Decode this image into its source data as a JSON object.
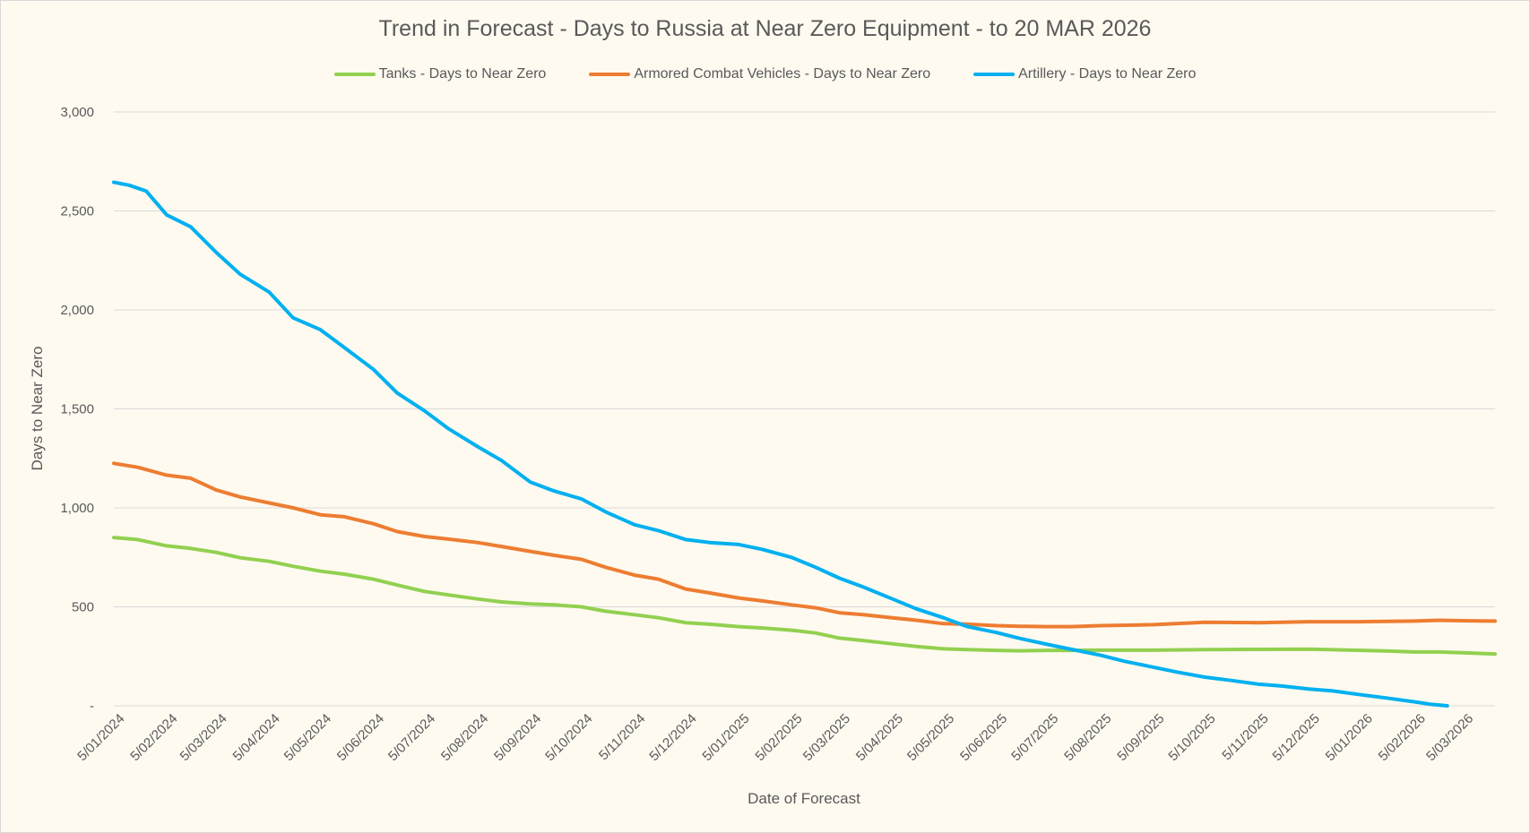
{
  "chart_data": {
    "type": "line",
    "title": "Trend in Forecast - Days to Russia at Near Zero Equipment - to 20 MAR 2026",
    "xlabel": "Date of Forecast",
    "ylabel": "Days to Near Zero",
    "ylim": [
      0,
      3000
    ],
    "xlim": [
      "2024-01-01",
      "2026-03-20"
    ],
    "y_ticks": [
      0,
      500,
      1000,
      1500,
      2000,
      2500,
      3000
    ],
    "y_tick_labels": [
      "-",
      "500",
      "1,000",
      "1,500",
      "2,000",
      "2,500",
      "3,000"
    ],
    "x_ticks": [
      "2024-01-05",
      "2024-02-05",
      "2024-03-05",
      "2024-04-05",
      "2024-05-05",
      "2024-06-05",
      "2024-07-05",
      "2024-08-05",
      "2024-09-05",
      "2024-10-05",
      "2024-11-05",
      "2024-12-05",
      "2025-01-05",
      "2025-02-05",
      "2025-03-05",
      "2025-04-05",
      "2025-05-05",
      "2025-06-05",
      "2025-07-05",
      "2025-08-05",
      "2025-09-05",
      "2025-10-05",
      "2025-11-05",
      "2025-12-05",
      "2026-01-05",
      "2026-02-05",
      "2026-03-05"
    ],
    "x_tick_labels": [
      "5/01/2024",
      "5/02/2024",
      "5/03/2024",
      "5/04/2024",
      "5/05/2024",
      "5/06/2024",
      "5/07/2024",
      "5/08/2024",
      "5/09/2024",
      "5/10/2024",
      "5/11/2024",
      "5/12/2024",
      "5/01/2025",
      "5/02/2025",
      "5/03/2025",
      "5/04/2025",
      "5/05/2025",
      "5/06/2025",
      "5/07/2025",
      "5/08/2025",
      "5/09/2025",
      "5/10/2025",
      "5/11/2025",
      "5/12/2025",
      "5/01/2026",
      "5/02/2026",
      "5/03/2026"
    ],
    "grid": true,
    "legend_position": "top",
    "series": [
      {
        "name": "Tanks - Days to Near Zero",
        "color": "#92d050",
        "points": [
          [
            "2024-01-01",
            850
          ],
          [
            "2024-01-15",
            840
          ],
          [
            "2024-02-01",
            808
          ],
          [
            "2024-02-15",
            795
          ],
          [
            "2024-03-01",
            775
          ],
          [
            "2024-03-15",
            748
          ],
          [
            "2024-04-01",
            730
          ],
          [
            "2024-04-15",
            705
          ],
          [
            "2024-05-01",
            680
          ],
          [
            "2024-05-15",
            665
          ],
          [
            "2024-06-01",
            640
          ],
          [
            "2024-06-15",
            610
          ],
          [
            "2024-07-01",
            578
          ],
          [
            "2024-07-15",
            560
          ],
          [
            "2024-08-01",
            540
          ],
          [
            "2024-08-15",
            525
          ],
          [
            "2024-09-01",
            515
          ],
          [
            "2024-09-15",
            510
          ],
          [
            "2024-10-01",
            500
          ],
          [
            "2024-10-15",
            478
          ],
          [
            "2024-11-01",
            460
          ],
          [
            "2024-11-15",
            445
          ],
          [
            "2024-12-01",
            420
          ],
          [
            "2024-12-15",
            412
          ],
          [
            "2025-01-01",
            400
          ],
          [
            "2025-01-15",
            393
          ],
          [
            "2025-02-01",
            382
          ],
          [
            "2025-02-15",
            368
          ],
          [
            "2025-03-01",
            342
          ],
          [
            "2025-03-15",
            330
          ],
          [
            "2025-04-01",
            313
          ],
          [
            "2025-04-15",
            300
          ],
          [
            "2025-05-01",
            288
          ],
          [
            "2025-05-15",
            284
          ],
          [
            "2025-06-01",
            280
          ],
          [
            "2025-06-15",
            278
          ],
          [
            "2025-07-01",
            280
          ],
          [
            "2025-07-15",
            280
          ],
          [
            "2025-08-01",
            281
          ],
          [
            "2025-09-01",
            281
          ],
          [
            "2025-10-01",
            284
          ],
          [
            "2025-11-01",
            285
          ],
          [
            "2025-12-01",
            286
          ],
          [
            "2026-01-01",
            280
          ],
          [
            "2026-01-15",
            277
          ],
          [
            "2026-02-01",
            272
          ],
          [
            "2026-02-15",
            272
          ],
          [
            "2026-03-01",
            268
          ],
          [
            "2026-03-20",
            262
          ]
        ]
      },
      {
        "name": "Armored Combat Vehicles - Days to Near Zero",
        "color": "#ed7d31",
        "points": [
          [
            "2024-01-01",
            1225
          ],
          [
            "2024-01-15",
            1205
          ],
          [
            "2024-02-01",
            1165
          ],
          [
            "2024-02-15",
            1150
          ],
          [
            "2024-03-01",
            1090
          ],
          [
            "2024-03-15",
            1055
          ],
          [
            "2024-04-01",
            1025
          ],
          [
            "2024-04-15",
            1000
          ],
          [
            "2024-05-01",
            965
          ],
          [
            "2024-05-15",
            955
          ],
          [
            "2024-06-01",
            920
          ],
          [
            "2024-06-15",
            880
          ],
          [
            "2024-07-01",
            855
          ],
          [
            "2024-07-15",
            842
          ],
          [
            "2024-08-01",
            825
          ],
          [
            "2024-08-15",
            805
          ],
          [
            "2024-09-01",
            780
          ],
          [
            "2024-09-15",
            760
          ],
          [
            "2024-10-01",
            740
          ],
          [
            "2024-10-15",
            700
          ],
          [
            "2024-11-01",
            660
          ],
          [
            "2024-11-15",
            640
          ],
          [
            "2024-12-01",
            590
          ],
          [
            "2024-12-15",
            570
          ],
          [
            "2025-01-01",
            545
          ],
          [
            "2025-01-15",
            530
          ],
          [
            "2025-02-01",
            510
          ],
          [
            "2025-02-15",
            495
          ],
          [
            "2025-03-01",
            470
          ],
          [
            "2025-03-15",
            460
          ],
          [
            "2025-04-01",
            445
          ],
          [
            "2025-04-15",
            432
          ],
          [
            "2025-05-01",
            415
          ],
          [
            "2025-05-15",
            412
          ],
          [
            "2025-06-01",
            405
          ],
          [
            "2025-06-15",
            402
          ],
          [
            "2025-07-01",
            400
          ],
          [
            "2025-07-15",
            400
          ],
          [
            "2025-08-01",
            405
          ],
          [
            "2025-09-01",
            410
          ],
          [
            "2025-10-01",
            422
          ],
          [
            "2025-11-01",
            420
          ],
          [
            "2025-12-01",
            425
          ],
          [
            "2026-01-01",
            425
          ],
          [
            "2026-02-01",
            428
          ],
          [
            "2026-02-15",
            432
          ],
          [
            "2026-03-01",
            430
          ],
          [
            "2026-03-20",
            428
          ]
        ]
      },
      {
        "name": "Artillery - Days to Near Zero",
        "color": "#00b0f0",
        "points": [
          [
            "2024-01-01",
            2645
          ],
          [
            "2024-01-10",
            2630
          ],
          [
            "2024-01-20",
            2600
          ],
          [
            "2024-02-01",
            2480
          ],
          [
            "2024-02-15",
            2420
          ],
          [
            "2024-03-01",
            2290
          ],
          [
            "2024-03-15",
            2180
          ],
          [
            "2024-04-01",
            2090
          ],
          [
            "2024-04-15",
            1960
          ],
          [
            "2024-05-01",
            1900
          ],
          [
            "2024-05-15",
            1810
          ],
          [
            "2024-06-01",
            1700
          ],
          [
            "2024-06-15",
            1580
          ],
          [
            "2024-07-01",
            1490
          ],
          [
            "2024-07-15",
            1400
          ],
          [
            "2024-08-01",
            1310
          ],
          [
            "2024-08-15",
            1240
          ],
          [
            "2024-09-01",
            1130
          ],
          [
            "2024-09-15",
            1085
          ],
          [
            "2024-10-01",
            1045
          ],
          [
            "2024-10-15",
            980
          ],
          [
            "2024-11-01",
            915
          ],
          [
            "2024-11-15",
            885
          ],
          [
            "2024-12-01",
            840
          ],
          [
            "2024-12-15",
            825
          ],
          [
            "2025-01-01",
            815
          ],
          [
            "2025-01-15",
            790
          ],
          [
            "2025-02-01",
            750
          ],
          [
            "2025-02-15",
            700
          ],
          [
            "2025-03-01",
            645
          ],
          [
            "2025-03-15",
            600
          ],
          [
            "2025-04-01",
            540
          ],
          [
            "2025-04-15",
            490
          ],
          [
            "2025-05-01",
            445
          ],
          [
            "2025-05-15",
            400
          ],
          [
            "2025-06-01",
            370
          ],
          [
            "2025-06-15",
            340
          ],
          [
            "2025-07-01",
            310
          ],
          [
            "2025-07-15",
            285
          ],
          [
            "2025-08-01",
            255
          ],
          [
            "2025-08-15",
            225
          ],
          [
            "2025-09-01",
            195
          ],
          [
            "2025-09-15",
            170
          ],
          [
            "2025-10-01",
            145
          ],
          [
            "2025-10-15",
            130
          ],
          [
            "2025-11-01",
            110
          ],
          [
            "2025-11-15",
            100
          ],
          [
            "2025-12-01",
            85
          ],
          [
            "2025-12-15",
            75
          ],
          [
            "2026-01-01",
            55
          ],
          [
            "2026-01-15",
            40
          ],
          [
            "2026-02-01",
            20
          ],
          [
            "2026-02-10",
            8
          ],
          [
            "2026-02-20",
            0
          ]
        ]
      }
    ]
  }
}
